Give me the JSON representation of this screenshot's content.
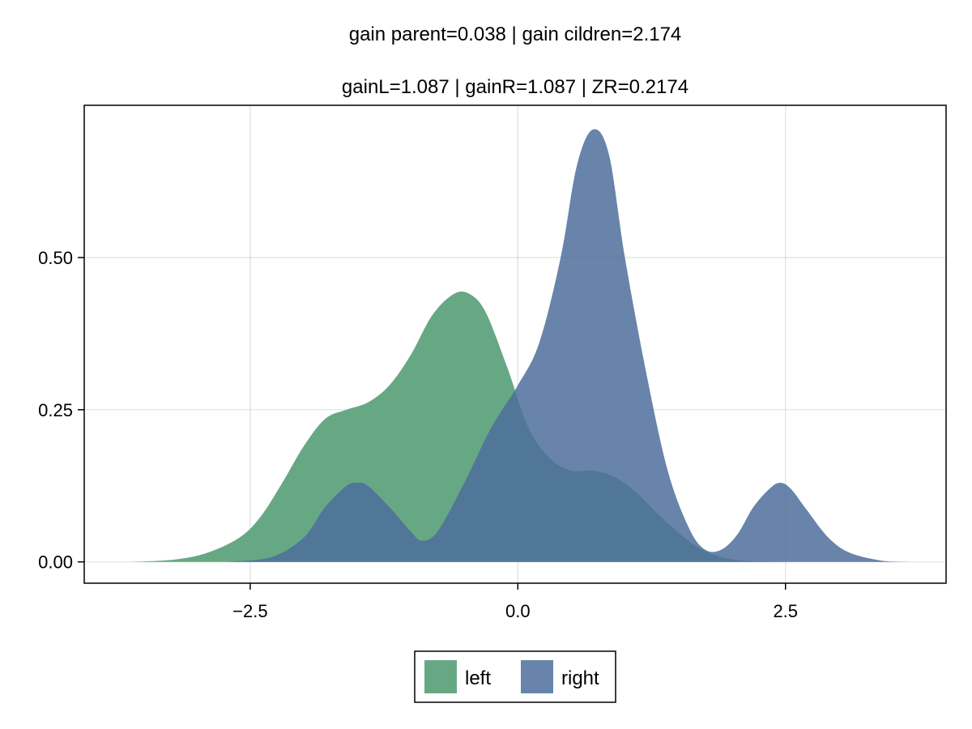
{
  "chart_data": {
    "type": "area",
    "title": "gain parent=0.038 | gain cildren=2.174",
    "subtitle": "gainL=1.087 | gainR=1.087 | ZR=0.2174",
    "xlabel": "",
    "ylabel": "",
    "xlim": [
      -4.05,
      4.0
    ],
    "ylim": [
      -0.035,
      0.75
    ],
    "grid": true,
    "legend_position": "bottom",
    "x_ticks": [
      -2.5,
      0.0,
      2.5
    ],
    "x_tick_labels": [
      "−2.5",
      "0.0",
      "2.5"
    ],
    "y_ticks": [
      0.0,
      0.25,
      0.5
    ],
    "y_tick_labels": [
      "0.00",
      "0.25",
      "0.50"
    ],
    "series": [
      {
        "name": "left",
        "color": "#67a884",
        "x": [
          -3.6,
          -3.2,
          -2.9,
          -2.6,
          -2.4,
          -2.2,
          -2.0,
          -1.8,
          -1.6,
          -1.4,
          -1.2,
          -1.0,
          -0.8,
          -0.6,
          -0.45,
          -0.3,
          -0.1,
          0.1,
          0.3,
          0.5,
          0.7,
          0.9,
          1.1,
          1.3,
          1.5,
          1.7,
          1.9,
          2.1,
          2.3,
          2.5
        ],
        "values": [
          0.0,
          0.004,
          0.015,
          0.04,
          0.075,
          0.13,
          0.19,
          0.235,
          0.25,
          0.262,
          0.29,
          0.34,
          0.405,
          0.44,
          0.44,
          0.41,
          0.32,
          0.22,
          0.17,
          0.15,
          0.15,
          0.14,
          0.115,
          0.08,
          0.048,
          0.022,
          0.008,
          0.002,
          0.0005,
          0.0
        ]
      },
      {
        "name": "right",
        "color": "#4e6f9b",
        "x": [
          -2.7,
          -2.3,
          -2.0,
          -1.8,
          -1.6,
          -1.5,
          -1.4,
          -1.2,
          -1.0,
          -0.9,
          -0.75,
          -0.5,
          -0.25,
          0.0,
          0.2,
          0.4,
          0.55,
          0.7,
          0.85,
          1.0,
          1.2,
          1.4,
          1.6,
          1.75,
          1.9,
          2.05,
          2.2,
          2.35,
          2.45,
          2.55,
          2.7,
          2.9,
          3.1,
          3.4,
          3.65
        ],
        "values": [
          0.0,
          0.008,
          0.04,
          0.09,
          0.125,
          0.13,
          0.125,
          0.09,
          0.05,
          0.035,
          0.05,
          0.13,
          0.22,
          0.29,
          0.36,
          0.5,
          0.65,
          0.71,
          0.67,
          0.5,
          0.31,
          0.15,
          0.055,
          0.02,
          0.02,
          0.045,
          0.09,
          0.12,
          0.13,
          0.12,
          0.085,
          0.04,
          0.015,
          0.002,
          0.0
        ]
      }
    ]
  }
}
